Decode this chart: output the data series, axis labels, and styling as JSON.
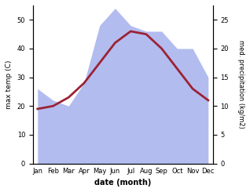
{
  "months": [
    "Jan",
    "Feb",
    "Mar",
    "Apr",
    "May",
    "Jun",
    "Jul",
    "Aug",
    "Sep",
    "Oct",
    "Nov",
    "Dec"
  ],
  "month_indices": [
    0,
    1,
    2,
    3,
    4,
    5,
    6,
    7,
    8,
    9,
    10,
    11
  ],
  "temp_max": [
    19,
    20,
    23,
    28,
    35,
    42,
    46,
    45,
    40,
    33,
    26,
    22
  ],
  "precipitation": [
    13,
    11,
    10,
    14,
    24,
    27,
    24,
    23,
    23,
    20,
    20,
    15
  ],
  "precip_fill_color": "#b3bcef",
  "temp_line_color": "#9b2335",
  "temp_ylim": [
    0,
    55
  ],
  "precip_ylim": [
    0,
    27.5
  ],
  "temp_yticks": [
    0,
    10,
    20,
    30,
    40,
    50
  ],
  "precip_yticks": [
    0,
    5,
    10,
    15,
    20,
    25
  ],
  "xlabel": "date (month)",
  "ylabel_left": "max temp (C)",
  "ylabel_right": "med. precipitation (kg/m2)",
  "title": "",
  "figsize": [
    3.18,
    2.45
  ],
  "dpi": 100
}
